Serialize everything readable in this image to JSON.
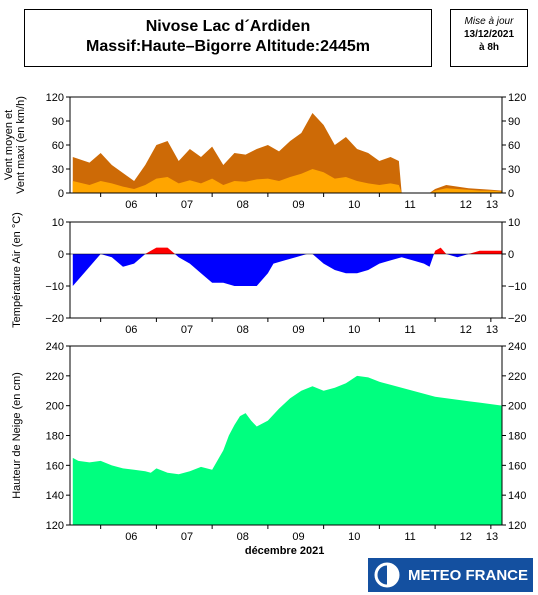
{
  "header": {
    "title_line1": "Nivose Lac d´Ardiden",
    "title_line2": "Massif:Haute–Bigorre Altitude:2445m",
    "update_label": "Mise à jour",
    "update_date": "13/12/2021",
    "update_time": "à 8h"
  },
  "logo": {
    "text": "METEO FRANCE"
  },
  "colors": {
    "wind_max": "#cd6a06",
    "wind_mean": "#ffa500",
    "temp_cold": "#0000ff",
    "temp_warm": "#ff0000",
    "snow": "#00ff7f"
  },
  "chart_data": [
    {
      "type": "area",
      "ylabel": "Vent moyen et Vent maxi (en km/h)",
      "ylim": [
        0,
        120
      ],
      "yticks": [
        0,
        30,
        60,
        90,
        120
      ],
      "xticks": [
        "06",
        "07",
        "08",
        "09",
        "10",
        "11",
        "12",
        "13"
      ],
      "series": [
        {
          "name": "Vent maxi",
          "x": [
            5.5,
            5.8,
            6.0,
            6.2,
            6.4,
            6.6,
            6.8,
            7.0,
            7.2,
            7.4,
            7.6,
            7.8,
            8.0,
            8.2,
            8.4,
            8.6,
            8.8,
            9.0,
            9.2,
            9.4,
            9.6,
            9.8,
            10.0,
            10.2,
            10.4,
            10.6,
            10.8,
            11.0,
            11.2,
            11.35,
            11.4,
            11.9,
            12.0,
            12.2,
            12.4,
            12.6,
            12.8,
            13.0,
            13.2
          ],
          "values": [
            45,
            38,
            50,
            35,
            25,
            15,
            35,
            60,
            65,
            40,
            55,
            45,
            58,
            35,
            50,
            48,
            55,
            60,
            52,
            65,
            75,
            100,
            85,
            60,
            70,
            55,
            50,
            40,
            45,
            40,
            0,
            0,
            5,
            10,
            8,
            6,
            5,
            4,
            3
          ]
        },
        {
          "name": "Vent moyen",
          "x": [
            5.5,
            5.8,
            6.0,
            6.2,
            6.4,
            6.6,
            6.8,
            7.0,
            7.2,
            7.4,
            7.6,
            7.8,
            8.0,
            8.2,
            8.4,
            8.6,
            8.8,
            9.0,
            9.2,
            9.4,
            9.6,
            9.8,
            10.0,
            10.2,
            10.4,
            10.6,
            10.8,
            11.0,
            11.2,
            11.35,
            11.4,
            11.9,
            12.0,
            12.2,
            12.4,
            12.6,
            12.8,
            13.0,
            13.2
          ],
          "values": [
            15,
            10,
            15,
            12,
            8,
            5,
            10,
            18,
            20,
            12,
            16,
            12,
            18,
            10,
            15,
            14,
            17,
            18,
            15,
            20,
            24,
            30,
            26,
            18,
            20,
            15,
            12,
            10,
            12,
            10,
            0,
            0,
            3,
            6,
            5,
            4,
            3,
            3,
            2
          ]
        }
      ]
    },
    {
      "type": "area",
      "ylabel": "Température Air (en °C)",
      "ylim": [
        -20,
        10
      ],
      "yticks": [
        -20,
        -10,
        0,
        10
      ],
      "xticks": [
        "06",
        "07",
        "08",
        "09",
        "10",
        "11",
        "12",
        "13"
      ],
      "series": [
        {
          "name": "Température",
          "x": [
            5.5,
            5.7,
            5.9,
            6.0,
            6.2,
            6.4,
            6.6,
            6.8,
            6.9,
            7.0,
            7.2,
            7.4,
            7.6,
            7.8,
            8.0,
            8.2,
            8.4,
            8.6,
            8.8,
            9.0,
            9.1,
            9.3,
            9.5,
            9.7,
            9.8,
            10.0,
            10.2,
            10.4,
            10.6,
            10.8,
            11.0,
            11.2,
            11.4,
            11.6,
            11.8,
            11.9,
            12.0,
            12.1,
            12.2,
            12.4,
            12.6,
            12.8,
            13.0,
            13.2
          ],
          "values": [
            -10,
            -6,
            -2,
            0,
            -1,
            -4,
            -3,
            0,
            1,
            2,
            2,
            -1,
            -3,
            -6,
            -9,
            -9,
            -10,
            -10,
            -10,
            -6,
            -3,
            -2,
            -1,
            0,
            0,
            -3,
            -5,
            -6,
            -6,
            -5,
            -3,
            -2,
            -1,
            -2,
            -3,
            -4,
            1,
            2,
            0,
            -1,
            0,
            1,
            1,
            1
          ]
        }
      ]
    },
    {
      "type": "area",
      "ylabel": "Hauteur de Neige (en cm)",
      "xlabel": "décembre 2021",
      "ylim": [
        120,
        240
      ],
      "yticks": [
        120,
        140,
        160,
        180,
        200,
        220,
        240
      ],
      "xticks": [
        "06",
        "07",
        "08",
        "09",
        "10",
        "11",
        "12",
        "13"
      ],
      "series": [
        {
          "name": "Hauteur de neige",
          "x": [
            5.5,
            5.6,
            5.8,
            6.0,
            6.2,
            6.4,
            6.6,
            6.8,
            6.9,
            7.0,
            7.2,
            7.4,
            7.6,
            7.8,
            8.0,
            8.2,
            8.3,
            8.4,
            8.5,
            8.6,
            8.7,
            8.8,
            9.0,
            9.2,
            9.4,
            9.6,
            9.8,
            10.0,
            10.2,
            10.4,
            10.6,
            10.8,
            11.0,
            11.2,
            11.4,
            11.6,
            11.8,
            12.0,
            12.2,
            12.4,
            12.6,
            12.8,
            13.0,
            13.2
          ],
          "values": [
            165,
            163,
            162,
            163,
            160,
            158,
            157,
            156,
            155,
            158,
            155,
            154,
            156,
            159,
            157,
            170,
            180,
            187,
            193,
            195,
            190,
            186,
            190,
            198,
            205,
            210,
            213,
            210,
            212,
            215,
            220,
            219,
            216,
            214,
            212,
            210,
            208,
            206,
            205,
            204,
            203,
            202,
            201,
            200
          ]
        }
      ]
    }
  ]
}
